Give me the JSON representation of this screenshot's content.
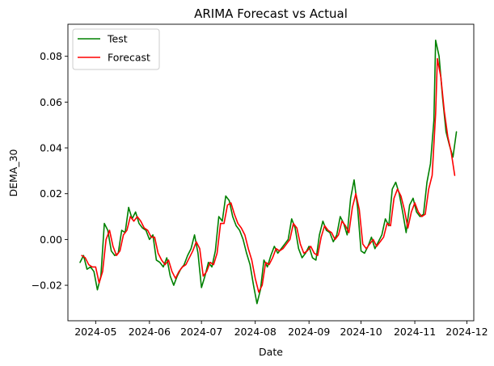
{
  "chart_data": {
    "type": "line",
    "title": "ARIMA Forecast vs Actual",
    "xlabel": "Date",
    "ylabel": "DEMA_30",
    "x_ticks": [
      "2024-05",
      "2024-06",
      "2024-07",
      "2024-08",
      "2024-09",
      "2024-10",
      "2024-11",
      "2024-12"
    ],
    "y_ticks": [
      "−0.02",
      "0.00",
      "0.02",
      "0.04",
      "0.06",
      "0.08"
    ],
    "xlim": [
      "2024-04-15",
      "2024-12-05"
    ],
    "ylim": [
      -0.0355,
      0.094
    ],
    "grid": false,
    "legend_position": "top-left",
    "series": [
      {
        "name": "Test",
        "color": "#008000",
        "x": [
          "2024-04-22",
          "2024-04-24",
          "2024-04-26",
          "2024-04-28",
          "2024-04-30",
          "2024-05-02",
          "2024-05-04",
          "2024-05-06",
          "2024-05-08",
          "2024-05-10",
          "2024-05-12",
          "2024-05-14",
          "2024-05-16",
          "2024-05-18",
          "2024-05-20",
          "2024-05-22",
          "2024-05-24",
          "2024-05-26",
          "2024-05-28",
          "2024-05-30",
          "2024-06-01",
          "2024-06-03",
          "2024-06-05",
          "2024-06-07",
          "2024-06-09",
          "2024-06-11",
          "2024-06-13",
          "2024-06-15",
          "2024-06-17",
          "2024-06-19",
          "2024-06-21",
          "2024-06-23",
          "2024-06-25",
          "2024-06-27",
          "2024-06-29",
          "2024-07-01",
          "2024-07-03",
          "2024-07-05",
          "2024-07-07",
          "2024-07-09",
          "2024-07-11",
          "2024-07-13",
          "2024-07-15",
          "2024-07-17",
          "2024-07-19",
          "2024-07-21",
          "2024-07-23",
          "2024-07-25",
          "2024-07-27",
          "2024-07-29",
          "2024-07-31",
          "2024-08-02",
          "2024-08-04",
          "2024-08-06",
          "2024-08-08",
          "2024-08-10",
          "2024-08-12",
          "2024-08-14",
          "2024-08-16",
          "2024-08-18",
          "2024-08-20",
          "2024-08-22",
          "2024-08-24",
          "2024-08-26",
          "2024-08-28",
          "2024-08-30",
          "2024-09-01",
          "2024-09-03",
          "2024-09-05",
          "2024-09-07",
          "2024-09-09",
          "2024-09-11",
          "2024-09-13",
          "2024-09-15",
          "2024-09-17",
          "2024-09-19",
          "2024-09-21",
          "2024-09-23",
          "2024-09-25",
          "2024-09-27",
          "2024-09-29",
          "2024-10-01",
          "2024-10-03",
          "2024-10-05",
          "2024-10-07",
          "2024-10-09",
          "2024-10-11",
          "2024-10-13",
          "2024-10-15",
          "2024-10-17",
          "2024-10-19",
          "2024-10-21",
          "2024-10-23",
          "2024-10-25",
          "2024-10-27",
          "2024-10-29",
          "2024-10-31",
          "2024-11-02",
          "2024-11-04",
          "2024-11-06",
          "2024-11-08",
          "2024-11-10",
          "2024-11-12",
          "2024-11-13",
          "2024-11-15",
          "2024-11-17",
          "2024-11-19",
          "2024-11-21",
          "2024-11-23",
          "2024-11-25"
        ],
        "values": [
          -0.01,
          -0.007,
          -0.013,
          -0.012,
          -0.014,
          -0.022,
          -0.016,
          0.007,
          0.004,
          -0.005,
          -0.007,
          -0.006,
          0.004,
          0.003,
          0.014,
          0.009,
          0.012,
          0.007,
          0.005,
          0.004,
          0.0,
          0.002,
          -0.009,
          -0.01,
          -0.012,
          -0.008,
          -0.016,
          -0.02,
          -0.016,
          -0.013,
          -0.011,
          -0.007,
          -0.004,
          0.002,
          -0.006,
          -0.021,
          -0.016,
          -0.01,
          -0.012,
          -0.005,
          0.01,
          0.008,
          0.019,
          0.017,
          0.01,
          0.006,
          0.004,
          0.0,
          -0.006,
          -0.011,
          -0.02,
          -0.028,
          -0.022,
          -0.009,
          -0.012,
          -0.007,
          -0.003,
          -0.006,
          -0.004,
          -0.002,
          0.0,
          0.009,
          0.005,
          -0.004,
          -0.008,
          -0.006,
          -0.003,
          -0.008,
          -0.009,
          0.002,
          0.008,
          0.004,
          0.003,
          -0.001,
          0.002,
          0.01,
          0.007,
          0.002,
          0.018,
          0.026,
          0.014,
          -0.005,
          -0.006,
          -0.003,
          0.001,
          -0.004,
          -0.001,
          0.002,
          0.009,
          0.006,
          0.022,
          0.025,
          0.02,
          0.012,
          0.003,
          0.015,
          0.018,
          0.012,
          0.01,
          0.011,
          0.025,
          0.033,
          0.052,
          0.087,
          0.08,
          0.062,
          0.047,
          0.041,
          0.036,
          0.047
        ]
      },
      {
        "name": "Forecast",
        "color": "#ff0000",
        "x": [
          "2024-04-23",
          "2024-04-25",
          "2024-04-27",
          "2024-04-29",
          "2024-05-01",
          "2024-05-03",
          "2024-05-05",
          "2024-05-07",
          "2024-05-09",
          "2024-05-11",
          "2024-05-13",
          "2024-05-15",
          "2024-05-17",
          "2024-05-19",
          "2024-05-21",
          "2024-05-23",
          "2024-05-25",
          "2024-05-27",
          "2024-05-29",
          "2024-05-31",
          "2024-06-02",
          "2024-06-04",
          "2024-06-06",
          "2024-06-08",
          "2024-06-10",
          "2024-06-12",
          "2024-06-14",
          "2024-06-16",
          "2024-06-18",
          "2024-06-20",
          "2024-06-22",
          "2024-06-24",
          "2024-06-26",
          "2024-06-28",
          "2024-06-30",
          "2024-07-02",
          "2024-07-04",
          "2024-07-06",
          "2024-07-08",
          "2024-07-10",
          "2024-07-12",
          "2024-07-14",
          "2024-07-16",
          "2024-07-18",
          "2024-07-20",
          "2024-07-22",
          "2024-07-24",
          "2024-07-26",
          "2024-07-28",
          "2024-07-30",
          "2024-08-01",
          "2024-08-03",
          "2024-08-05",
          "2024-08-07",
          "2024-08-09",
          "2024-08-11",
          "2024-08-13",
          "2024-08-15",
          "2024-08-17",
          "2024-08-19",
          "2024-08-21",
          "2024-08-23",
          "2024-08-25",
          "2024-08-27",
          "2024-08-29",
          "2024-08-31",
          "2024-09-02",
          "2024-09-04",
          "2024-09-06",
          "2024-09-08",
          "2024-09-10",
          "2024-09-12",
          "2024-09-14",
          "2024-09-16",
          "2024-09-18",
          "2024-09-20",
          "2024-09-22",
          "2024-09-24",
          "2024-09-26",
          "2024-09-28",
          "2024-09-30",
          "2024-10-02",
          "2024-10-04",
          "2024-10-06",
          "2024-10-08",
          "2024-10-10",
          "2024-10-12",
          "2024-10-14",
          "2024-10-16",
          "2024-10-18",
          "2024-10-20",
          "2024-10-22",
          "2024-10-24",
          "2024-10-26",
          "2024-10-28",
          "2024-10-30",
          "2024-11-01",
          "2024-11-03",
          "2024-11-05",
          "2024-11-07",
          "2024-11-09",
          "2024-11-11",
          "2024-11-13",
          "2024-11-14",
          "2024-11-16",
          "2024-11-18",
          "2024-11-20",
          "2024-11-22",
          "2024-11-24"
        ],
        "values": [
          -0.007,
          -0.008,
          -0.011,
          -0.012,
          -0.012,
          -0.019,
          -0.014,
          0.0,
          0.004,
          -0.003,
          -0.007,
          -0.005,
          0.002,
          0.004,
          0.01,
          0.008,
          0.01,
          0.008,
          0.005,
          0.004,
          0.001,
          0.001,
          -0.006,
          -0.009,
          -0.011,
          -0.009,
          -0.014,
          -0.017,
          -0.014,
          -0.012,
          -0.011,
          -0.008,
          -0.005,
          -0.001,
          -0.004,
          -0.016,
          -0.014,
          -0.01,
          -0.011,
          -0.006,
          0.007,
          0.007,
          0.015,
          0.016,
          0.011,
          0.007,
          0.005,
          0.002,
          -0.004,
          -0.009,
          -0.017,
          -0.023,
          -0.02,
          -0.01,
          -0.011,
          -0.008,
          -0.004,
          -0.005,
          -0.004,
          -0.002,
          0.0,
          0.007,
          0.005,
          -0.002,
          -0.006,
          -0.005,
          -0.003,
          -0.006,
          -0.007,
          0.001,
          0.006,
          0.004,
          0.003,
          0.0,
          0.002,
          0.008,
          0.006,
          0.003,
          0.014,
          0.02,
          0.013,
          -0.002,
          -0.004,
          -0.002,
          0.0,
          -0.003,
          -0.001,
          0.001,
          0.007,
          0.006,
          0.018,
          0.022,
          0.019,
          0.013,
          0.005,
          0.012,
          0.016,
          0.012,
          0.01,
          0.011,
          0.022,
          0.028,
          0.055,
          0.079,
          0.071,
          0.056,
          0.045,
          0.038,
          0.028
        ]
      }
    ]
  }
}
